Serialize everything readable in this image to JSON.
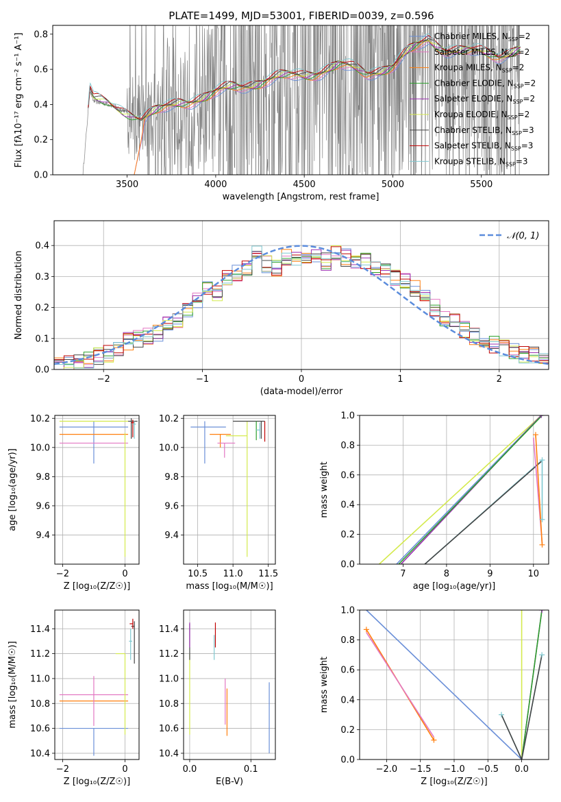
{
  "colors": {
    "chabrier_miles": "#6a8fd8",
    "salpeter_miles": "#e377c2",
    "kroupa_miles": "#ff7f0e",
    "chabrier_elodie": "#2ca02c",
    "salpeter_elodie": "#9b30b0",
    "kroupa_elodie": "#d4ea4c",
    "chabrier_stelib": "#444444",
    "salpeter_stelib": "#c00000",
    "kroupa_stelib": "#7fc8d0",
    "spectrum": "#808080",
    "normal": "#5b8cdc"
  },
  "chart_data": [
    {
      "id": "spectrum",
      "type": "line",
      "title": "PLATE=1499, MJD=53001, FIBERID=0039, z=0.596",
      "xlabel": "wavelength [Angstrom, rest frame]",
      "ylabel": "Flux [fλ10⁻¹⁷ erg cm⁻² s⁻¹ A⁻¹]",
      "xlim": [
        3080,
        5880
      ],
      "ylim": [
        0,
        0.85
      ],
      "xticks": [
        "3500",
        "4000",
        "4500",
        "5000",
        "5500"
      ],
      "yticks": [
        "0.0",
        "0.2",
        "0.4",
        "0.6",
        "0.8"
      ],
      "grid": false,
      "legend": "top-right",
      "legend_entries": [
        "Chabrier MILES, N_SSP=2",
        "Salpeter MILES, N_SSP=2",
        "Kroupa MILES, N_SSP=2",
        "Chabrier ELODIE, N_SSP=2",
        "Salpeter ELODIE, N_SSP=2",
        "Kroupa ELODIE, N_SSP=2",
        "Chabrier STELIB, N_SSP=3",
        "Salpeter STELIB, N_SSP=3",
        "Kroupa STELIB, N_SSP=3"
      ],
      "legend_text": [
        {
          "name": "Chabrier MILES, N",
          "sub": "SSP",
          "n": "=2"
        },
        {
          "name": "Salpeter MILES, N",
          "sub": "SSP",
          "n": "=2"
        },
        {
          "name": "Kroupa MILES, N",
          "sub": "SSP",
          "n": "=2"
        },
        {
          "name": "Chabrier ELODIE, N",
          "sub": "SSP",
          "n": "=2"
        },
        {
          "name": "Salpeter ELODIE, N",
          "sub": "SSP",
          "n": "=2"
        },
        {
          "name": "Kroupa ELODIE, N",
          "sub": "SSP",
          "n": "=2"
        },
        {
          "name": "Chabrier STELIB, N",
          "sub": "SSP",
          "n": "=3"
        },
        {
          "name": "Salpeter STELIB, N",
          "sub": "SSP",
          "n": "=3"
        },
        {
          "name": "Kroupa STELIB, N",
          "sub": "SSP",
          "n": "=3"
        }
      ],
      "data_start": 3250,
      "model_anchors": {
        "x": [
          3250,
          3290,
          3310,
          3400,
          3500,
          3580,
          3700,
          3800,
          3950,
          4100,
          4300,
          4500,
          4700,
          4850,
          5000,
          5100,
          5200,
          5300,
          5400,
          5600,
          5700
        ],
        "y": [
          0.0,
          0.48,
          0.42,
          0.4,
          0.36,
          0.31,
          0.37,
          0.42,
          0.44,
          0.5,
          0.54,
          0.57,
          0.62,
          0.58,
          0.62,
          0.7,
          0.77,
          0.72,
          0.7,
          0.68,
          0.72
        ]
      }
    },
    {
      "id": "residuals",
      "type": "step",
      "xlabel": "(data-model)/error",
      "ylabel": "Normed distribution",
      "xlim": [
        -2.5,
        2.5
      ],
      "ylim": [
        0,
        0.48
      ],
      "xticks": [
        "-2",
        "-1",
        "0",
        "1",
        "2"
      ],
      "yticks": [
        "0.0",
        "0.1",
        "0.2",
        "0.3",
        "0.4"
      ],
      "grid": true,
      "legend": "top-right",
      "legend_label": "𝒩(0, 1)",
      "bin_width": 0.1,
      "bin_start": -2.5,
      "base_hist": [
        0.02,
        0.02,
        0.03,
        0.03,
        0.04,
        0.05,
        0.07,
        0.09,
        0.1,
        0.11,
        0.12,
        0.14,
        0.16,
        0.19,
        0.22,
        0.26,
        0.25,
        0.3,
        0.31,
        0.32,
        0.37,
        0.34,
        0.33,
        0.36,
        0.36,
        0.37,
        0.36,
        0.35,
        0.37,
        0.36,
        0.34,
        0.35,
        0.33,
        0.32,
        0.3,
        0.28,
        0.26,
        0.23,
        0.2,
        0.17,
        0.15,
        0.13,
        0.11,
        0.09,
        0.08,
        0.07,
        0.06,
        0.05,
        0.05,
        0.04
      ]
    },
    {
      "id": "age_vs_Z",
      "type": "errorbar",
      "xlabel": "Z [log₁₀(Z/Z☉)]",
      "ylabel": "age  [log₁₀(age/yr)]",
      "xlim": [
        -2.25,
        0.45
      ],
      "ylim": [
        9.2,
        10.22
      ],
      "xticks": [
        "-2",
        "0"
      ],
      "yticks": [
        "9.4",
        "9.6",
        "9.8",
        "10.0",
        "10.2"
      ],
      "grid": true,
      "points": [
        {
          "c": "chabrier_miles",
          "x": -1.0,
          "xerr": [
            1.1,
            1.1
          ],
          "y": 10.14,
          "yerr": [
            0.25,
            0.04
          ]
        },
        {
          "c": "kroupa_miles",
          "x": -1.0,
          "xerr": [
            1.1,
            1.1
          ],
          "y": 10.09,
          "yerr": [
            0.0,
            0.0
          ]
        },
        {
          "c": "salpeter_miles",
          "x": -1.0,
          "xerr": [
            1.1,
            1.1
          ],
          "y": 10.03,
          "yerr": [
            0.0,
            0.0
          ]
        },
        {
          "c": "kroupa_elodie",
          "x": -1.0,
          "xerr": [
            1.1,
            1.1
          ],
          "y": 10.18,
          "yerr": [
            0.0,
            0.0
          ]
        },
        {
          "c": "kroupa_elodie",
          "x": 0.0,
          "xerr": [
            0.0,
            0.0
          ],
          "y": 9.25,
          "yerr": [
            0.0,
            0.0
          ],
          "vline": [
            9.25,
            10.1
          ]
        },
        {
          "c": "chabrier_stelib",
          "x": 0.2,
          "xerr": [
            0.1,
            0.2
          ],
          "y": 10.18,
          "yerr": [
            0.12,
            0.02
          ]
        },
        {
          "c": "salpeter_stelib",
          "x": 0.25,
          "xerr": [
            0.05,
            0.05
          ],
          "y": 10.17,
          "yerr": [
            0.1,
            0.02
          ]
        },
        {
          "c": "kroupa_stelib",
          "x": 0.3,
          "xerr": [
            0.05,
            0.05
          ],
          "y": 10.16,
          "yerr": [
            0.1,
            0.02
          ]
        }
      ]
    },
    {
      "id": "age_vs_mass",
      "type": "errorbar",
      "xlabel": "mass [log₁₀(M/M☉)]",
      "ylabel": "",
      "xlim": [
        10.3,
        11.6
      ],
      "ylim": [
        9.2,
        10.22
      ],
      "xticks": [
        "10.5",
        "11.0",
        "11.5"
      ],
      "yticks": [
        "9.4",
        "9.6",
        "9.8",
        "10.0",
        "10.2"
      ],
      "grid": true,
      "points": [
        {
          "c": "chabrier_miles",
          "x": 10.6,
          "xerr": [
            0.2,
            0.3
          ],
          "y": 10.14,
          "yerr": [
            0.25,
            0.04
          ]
        },
        {
          "c": "kroupa_miles",
          "x": 10.82,
          "xerr": [
            0.15,
            0.15
          ],
          "y": 10.09,
          "yerr": [
            0.09,
            0.0
          ]
        },
        {
          "c": "salpeter_miles",
          "x": 10.88,
          "xerr": [
            0.1,
            0.15
          ],
          "y": 10.03,
          "yerr": [
            0.1,
            0.0
          ]
        },
        {
          "c": "kroupa_elodie",
          "x": 11.2,
          "xerr": [
            0.3,
            0.0
          ],
          "y": 10.08,
          "yerr": [
            0.83,
            0.1
          ]
        },
        {
          "c": "chabrier_stelib",
          "x": 11.4,
          "xerr": [
            0.4,
            0.05
          ],
          "y": 10.18,
          "yerr": [
            0.12,
            0.0
          ]
        },
        {
          "c": "chabrier_elodie",
          "x": 11.33,
          "xerr": [
            0.0,
            0.0
          ],
          "y": 10.1,
          "yerr": [
            0.05,
            0.08
          ]
        },
        {
          "c": "salpeter_stelib",
          "x": 11.45,
          "xerr": [
            0.0,
            0.0
          ],
          "y": 10.1,
          "yerr": [
            0.06,
            0.08
          ]
        },
        {
          "c": "kroupa_stelib",
          "x": 11.38,
          "xerr": [
            0.05,
            0.0
          ],
          "y": 10.12,
          "yerr": [
            0.06,
            0.05
          ]
        }
      ]
    },
    {
      "id": "weight_vs_age",
      "type": "line",
      "xlabel": "age  [log₁₀(age/yr)]",
      "ylabel": "mass weight",
      "xlim": [
        6.0,
        10.35
      ],
      "ylim": [
        0,
        1.0
      ],
      "xticks": [
        "7",
        "8",
        "9",
        "10"
      ],
      "yticks": [
        "0.0",
        "0.2",
        "0.4",
        "0.6",
        "0.8",
        "1.0"
      ],
      "grid": true,
      "series": [
        {
          "c": "kroupa_elodie",
          "x": [
            6.45,
            10.18
          ],
          "y": [
            0.0,
            1.0
          ]
        },
        {
          "c": "chabrier_miles",
          "x": [
            6.85,
            10.18
          ],
          "y": [
            0.0,
            1.0
          ]
        },
        {
          "c": "salpeter_elodie",
          "x": [
            6.95,
            10.18
          ],
          "y": [
            0.0,
            1.0
          ]
        },
        {
          "c": "chabrier_elodie",
          "x": [
            6.9,
            10.2
          ],
          "y": [
            0.0,
            1.0
          ]
        },
        {
          "c": "kroupa_stelib",
          "x": [
            7.5,
            10.2
          ],
          "y": [
            0.0,
            0.7
          ]
        },
        {
          "c": "chabrier_stelib",
          "x": [
            7.5,
            10.18
          ],
          "y": [
            0.0,
            0.69
          ]
        },
        {
          "c": "kroupa_stelib",
          "x": [
            10.2,
            10.2
          ],
          "y": [
            0.7,
            0.3
          ]
        },
        {
          "c": "salpeter_miles",
          "x": [
            10.0,
            10.2
          ],
          "y": [
            0.85,
            0.14
          ]
        },
        {
          "c": "kroupa_miles",
          "x": [
            10.05,
            10.2
          ],
          "y": [
            0.87,
            0.13
          ]
        }
      ],
      "markers": [
        {
          "c": "kroupa_miles",
          "x": 10.05,
          "y": 0.87
        },
        {
          "c": "kroupa_miles",
          "x": 10.2,
          "y": 0.13
        },
        {
          "c": "kroupa_stelib",
          "x": 10.2,
          "y": 0.7
        },
        {
          "c": "kroupa_stelib",
          "x": 10.2,
          "y": 0.3
        },
        {
          "c": "salpeter_elodie",
          "x": 10.18,
          "y": 1.0
        }
      ]
    },
    {
      "id": "mass_vs_Z",
      "type": "errorbar",
      "xlabel": "Z [log₁₀(Z/Z☉)]",
      "ylabel": "mass [log₁₀(M/M☉)]",
      "xlim": [
        -2.25,
        0.45
      ],
      "ylim": [
        10.35,
        11.55
      ],
      "xticks": [
        "-2",
        "0"
      ],
      "yticks": [
        "10.4",
        "10.6",
        "10.8",
        "11.0",
        "11.2",
        "11.4"
      ],
      "grid": true,
      "points": [
        {
          "c": "chabrier_miles",
          "x": -1.0,
          "xerr": [
            1.1,
            1.1
          ],
          "y": 10.6,
          "yerr": [
            0.22,
            0.0
          ]
        },
        {
          "c": "kroupa_miles",
          "x": -1.0,
          "xerr": [
            1.1,
            1.1
          ],
          "y": 10.82,
          "yerr": [
            0.0,
            0.0
          ]
        },
        {
          "c": "salpeter_miles",
          "x": -1.0,
          "xerr": [
            1.1,
            1.1
          ],
          "y": 10.87,
          "yerr": [
            0.25,
            0.15
          ]
        },
        {
          "c": "kroupa_elodie",
          "x": 0.0,
          "xerr": [
            0.3,
            0.0
          ],
          "y": 11.2,
          "yerr": [
            0.65,
            0.0
          ]
        },
        {
          "c": "chabrier_stelib",
          "x": 0.3,
          "xerr": [
            0.1,
            0.0
          ],
          "y": 11.42,
          "yerr": [
            0.3,
            0.04
          ]
        },
        {
          "c": "salpeter_stelib",
          "x": 0.25,
          "xerr": [
            0.1,
            0.0
          ],
          "y": 11.44,
          "yerr": [
            0.04,
            0.04
          ]
        },
        {
          "c": "kroupa_stelib",
          "x": 0.18,
          "xerr": [
            0.05,
            0.05
          ],
          "y": 11.3,
          "yerr": [
            0.15,
            0.1
          ]
        }
      ]
    },
    {
      "id": "mass_vs_ebv",
      "type": "errorbar",
      "xlabel": "E(B-V)",
      "ylabel": "",
      "xlim": [
        -0.01,
        0.14
      ],
      "ylim": [
        10.35,
        11.55
      ],
      "xticks": [
        "0.0",
        "0.1"
      ],
      "yticks": [
        "10.4",
        "10.6",
        "10.8",
        "11.0",
        "11.2",
        "11.4"
      ],
      "grid": true,
      "points": [
        {
          "c": "kroupa_elodie",
          "x": 0.0,
          "xerr": [
            0,
            0
          ],
          "y": 11.0,
          "yerr": [
            0.45,
            0.2
          ]
        },
        {
          "c": "chabrier_stelib",
          "x": 0.0,
          "xerr": [
            0,
            0
          ],
          "y": 11.3,
          "yerr": [
            0.15,
            0.14
          ]
        },
        {
          "c": "salpeter_elodie",
          "x": 0.0,
          "xerr": [
            0,
            0
          ],
          "y": 11.35,
          "yerr": [
            0.1,
            0.1
          ]
        },
        {
          "c": "kroupa_stelib",
          "x": 0.04,
          "xerr": [
            0,
            0
          ],
          "y": 11.25,
          "yerr": [
            0.1,
            0.1
          ]
        },
        {
          "c": "salpeter_stelib",
          "x": 0.042,
          "xerr": [
            0,
            0
          ],
          "y": 11.35,
          "yerr": [
            0.1,
            0.1
          ]
        },
        {
          "c": "salpeter_miles",
          "x": 0.058,
          "xerr": [
            0,
            0
          ],
          "y": 10.8,
          "yerr": [
            0.17,
            0.2
          ]
        },
        {
          "c": "kroupa_miles",
          "x": 0.061,
          "xerr": [
            0,
            0
          ],
          "y": 10.72,
          "yerr": [
            0.18,
            0.2
          ]
        },
        {
          "c": "chabrier_miles",
          "x": 0.13,
          "xerr": [
            0,
            0
          ],
          "y": 10.7,
          "yerr": [
            0.3,
            0.27
          ]
        }
      ]
    },
    {
      "id": "weight_vs_Z",
      "type": "line",
      "xlabel": "Z [log₁₀(Z/Z☉)]",
      "ylabel": "mass weight",
      "xlim": [
        -2.4,
        0.4
      ],
      "ylim": [
        0,
        1.0
      ],
      "xticks": [
        "-2.0",
        "-1.5",
        "-1.0",
        "-0.5",
        "0.0"
      ],
      "yticks": [
        "0.0",
        "0.2",
        "0.4",
        "0.6",
        "0.8",
        "1.0"
      ],
      "grid": true,
      "series": [
        {
          "c": "chabrier_miles",
          "x": [
            -2.3,
            0.0
          ],
          "y": [
            1.0,
            0.0
          ]
        },
        {
          "c": "kroupa_miles",
          "x": [
            -2.3,
            -1.3
          ],
          "y": [
            0.87,
            0.13
          ]
        },
        {
          "c": "salpeter_miles",
          "x": [
            -2.3,
            -1.3
          ],
          "y": [
            0.85,
            0.15
          ]
        },
        {
          "c": "kroupa_elodie",
          "x": [
            0.0,
            0.0
          ],
          "y": [
            0.0,
            1.0
          ]
        },
        {
          "c": "salpeter_elodie",
          "x": [
            0.0,
            0.3
          ],
          "y": [
            0.0,
            1.0
          ]
        },
        {
          "c": "chabrier_elodie",
          "x": [
            0.0,
            0.3
          ],
          "y": [
            0.0,
            1.0
          ]
        },
        {
          "c": "kroupa_stelib",
          "x": [
            -0.3,
            0.0,
            0.3
          ],
          "y": [
            0.3,
            0.0,
            0.7
          ]
        },
        {
          "c": "chabrier_stelib",
          "x": [
            -0.3,
            0.0,
            0.3
          ],
          "y": [
            0.3,
            0.0,
            0.7
          ]
        }
      ],
      "markers": [
        {
          "c": "kroupa_miles",
          "x": -2.3,
          "y": 0.87
        },
        {
          "c": "kroupa_miles",
          "x": -1.3,
          "y": 0.13
        },
        {
          "c": "kroupa_stelib",
          "x": -0.3,
          "y": 0.3
        },
        {
          "c": "kroupa_stelib",
          "x": 0.3,
          "y": 0.7
        },
        {
          "c": "salpeter_elodie",
          "x": 0.3,
          "y": 1.0
        }
      ]
    }
  ]
}
